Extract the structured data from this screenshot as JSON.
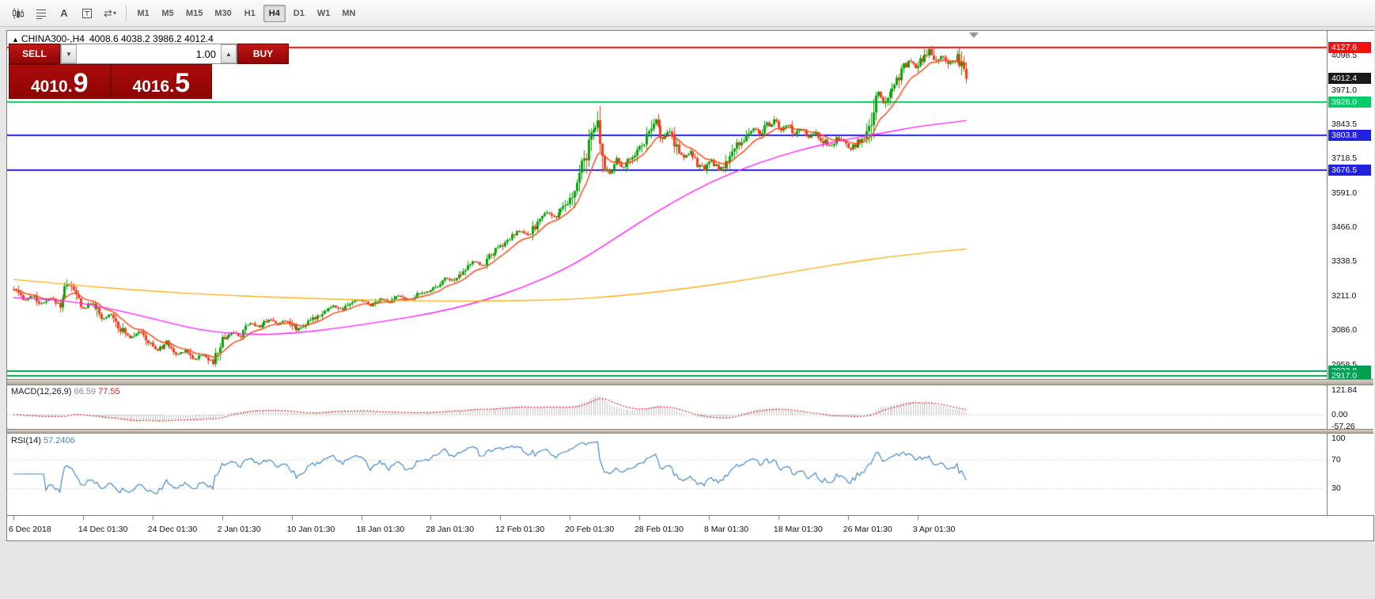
{
  "toolbar": {
    "icon_glyphs": {
      "text": "A",
      "cycle": "⇄",
      "caret": "▾"
    },
    "timeframes": [
      {
        "label": "M1",
        "active": false
      },
      {
        "label": "M5",
        "active": false
      },
      {
        "label": "M15",
        "active": false
      },
      {
        "label": "M30",
        "active": false
      },
      {
        "label": "H1",
        "active": false
      },
      {
        "label": "H4",
        "active": true
      },
      {
        "label": "D1",
        "active": false
      },
      {
        "label": "W1",
        "active": false
      },
      {
        "label": "MN",
        "active": false
      }
    ]
  },
  "chart_header": {
    "marker": "▲",
    "symbol": "CHINA300-,H4",
    "ohlc": "4008.6 4038.2 3986.2 4012.4"
  },
  "trade_panel": {
    "sell_label": "SELL",
    "buy_label": "BUY",
    "volume": "1.00",
    "vol_down_glyph": "▼",
    "vol_up_glyph": "▲",
    "sell_price": "4010.9",
    "buy_price": "4016.5"
  },
  "panels": {
    "macd": {
      "name": "MACD(12,26,9)",
      "value_main": "66.59",
      "value_signal": "77.55"
    },
    "rsi": {
      "name": "RSI(14)",
      "value": "57.2406"
    }
  },
  "price_scale": {
    "plain": [
      {
        "text": "4098.5",
        "price": 4098.5
      },
      {
        "text": "3971.0",
        "price": 3971.0
      },
      {
        "text": "3843.5",
        "price": 3843.5
      },
      {
        "text": "3718.5",
        "price": 3718.5
      },
      {
        "text": "3591.0",
        "price": 3591.0
      },
      {
        "text": "3466.0",
        "price": 3466.0
      },
      {
        "text": "3338.5",
        "price": 3338.5
      },
      {
        "text": "3211.0",
        "price": 3211.0
      },
      {
        "text": "3086.0",
        "price": 3086.0
      },
      {
        "text": "2958.5",
        "price": 2958.5
      }
    ],
    "tags": [
      {
        "text": "4127.6",
        "price": 4127.6,
        "bg": "#ee1212",
        "fg": "#ffffff"
      },
      {
        "text": "4012.4",
        "price": 4012.4,
        "bg": "#1a1a1a",
        "fg": "#ffffff"
      },
      {
        "text": "3926.0",
        "price": 3926.0,
        "bg": "#00cd66",
        "fg": "#ffffff"
      },
      {
        "text": "3803.8",
        "price": 3803.8,
        "bg": "#2222dd",
        "fg": "#ffffff"
      },
      {
        "text": "3676.5",
        "price": 3676.5,
        "bg": "#2222dd",
        "fg": "#ffffff"
      },
      {
        "text": "2933.8",
        "price": 2933.8,
        "bg": "#00a050",
        "fg": "#ffffff"
      },
      {
        "text": "2917.0",
        "price": 2917.0,
        "bg": "#00a050",
        "fg": "#ffffff"
      }
    ],
    "macd": [
      {
        "text": "121.84",
        "value": 121.84
      },
      {
        "text": "0.00",
        "value": 0.0
      },
      {
        "text": "-57.26",
        "value": -57.26
      }
    ],
    "rsi": [
      {
        "text": "100",
        "value": 100
      },
      {
        "text": "70",
        "value": 70
      },
      {
        "text": "30",
        "value": 30
      }
    ]
  },
  "time_axis": {
    "labels": [
      {
        "text": "6 Dec 2018",
        "bar": 0
      },
      {
        "text": "14 Dec 01:30",
        "bar": 30
      },
      {
        "text": "24 Dec 01:30",
        "bar": 60
      },
      {
        "text": "2 Jan 01:30",
        "bar": 90
      },
      {
        "text": "10 Jan 01:30",
        "bar": 120
      },
      {
        "text": "18 Jan 01:30",
        "bar": 150
      },
      {
        "text": "28 Jan 01:30",
        "bar": 180
      },
      {
        "text": "12 Feb 01:30",
        "bar": 210
      },
      {
        "text": "20 Feb 01:30",
        "bar": 240
      },
      {
        "text": "28 Feb 01:30",
        "bar": 270
      },
      {
        "text": "8 Mar 01:30",
        "bar": 300
      },
      {
        "text": "18 Mar 01:30",
        "bar": 330
      },
      {
        "text": "26 Mar 01:30",
        "bar": 360
      },
      {
        "text": "3 Apr 01:30",
        "bar": 390
      }
    ]
  },
  "chart_data": [
    {
      "type": "candlestick",
      "symbol": "CHINA300-",
      "timeframe": "H4",
      "ohlc_display": {
        "open": 4008.6,
        "high": 4038.2,
        "low": 3986.2,
        "close": 4012.4
      },
      "bid": 4010.9,
      "ask": 4016.5,
      "current_price": 4012.4,
      "bars": 412,
      "ylim": [
        2890,
        4170
      ],
      "up_color": "#0aa30a",
      "down_color": "#fb3a1a",
      "price_path": [
        [
          0,
          3235
        ],
        [
          4,
          3195
        ],
        [
          8,
          3212
        ],
        [
          12,
          3180
        ],
        [
          16,
          3202
        ],
        [
          20,
          3178
        ],
        [
          23,
          3262
        ],
        [
          26,
          3228
        ],
        [
          30,
          3162
        ],
        [
          34,
          3188
        ],
        [
          38,
          3120
        ],
        [
          42,
          3148
        ],
        [
          46,
          3090
        ],
        [
          50,
          3058
        ],
        [
          54,
          3082
        ],
        [
          58,
          3040
        ],
        [
          62,
          3010
        ],
        [
          66,
          3042
        ],
        [
          70,
          2992
        ],
        [
          74,
          3012
        ],
        [
          78,
          2976
        ],
        [
          82,
          2996
        ],
        [
          86,
          2966
        ],
        [
          90,
          3052
        ],
        [
          94,
          3076
        ],
        [
          98,
          3062
        ],
        [
          102,
          3112
        ],
        [
          106,
          3098
        ],
        [
          110,
          3126
        ],
        [
          114,
          3108
        ],
        [
          118,
          3122
        ],
        [
          122,
          3088
        ],
        [
          126,
          3106
        ],
        [
          130,
          3132
        ],
        [
          134,
          3156
        ],
        [
          138,
          3174
        ],
        [
          142,
          3160
        ],
        [
          146,
          3190
        ],
        [
          150,
          3196
        ],
        [
          154,
          3176
        ],
        [
          158,
          3202
        ],
        [
          162,
          3186
        ],
        [
          166,
          3212
        ],
        [
          170,
          3196
        ],
        [
          174,
          3216
        ],
        [
          178,
          3226
        ],
        [
          182,
          3246
        ],
        [
          186,
          3276
        ],
        [
          190,
          3268
        ],
        [
          194,
          3308
        ],
        [
          198,
          3338
        ],
        [
          202,
          3322
        ],
        [
          206,
          3368
        ],
        [
          210,
          3392
        ],
        [
          214,
          3422
        ],
        [
          218,
          3452
        ],
        [
          222,
          3432
        ],
        [
          226,
          3482
        ],
        [
          230,
          3520
        ],
        [
          234,
          3502
        ],
        [
          238,
          3542
        ],
        [
          241,
          3572
        ],
        [
          244,
          3650
        ],
        [
          247,
          3742
        ],
        [
          250,
          3812
        ],
        [
          252,
          3848
        ],
        [
          254,
          3712
        ],
        [
          257,
          3664
        ],
        [
          260,
          3712
        ],
        [
          263,
          3682
        ],
        [
          266,
          3722
        ],
        [
          269,
          3748
        ],
        [
          272,
          3782
        ],
        [
          275,
          3822
        ],
        [
          277,
          3856
        ],
        [
          280,
          3792
        ],
        [
          283,
          3820
        ],
        [
          286,
          3762
        ],
        [
          289,
          3722
        ],
        [
          292,
          3746
        ],
        [
          295,
          3702
        ],
        [
          298,
          3678
        ],
        [
          301,
          3716
        ],
        [
          304,
          3672
        ],
        [
          307,
          3696
        ],
        [
          310,
          3738
        ],
        [
          313,
          3776
        ],
        [
          316,
          3800
        ],
        [
          319,
          3828
        ],
        [
          322,
          3812
        ],
        [
          325,
          3840
        ],
        [
          328,
          3856
        ],
        [
          331,
          3824
        ],
        [
          334,
          3842
        ],
        [
          337,
          3802
        ],
        [
          340,
          3830
        ],
        [
          343,
          3792
        ],
        [
          346,
          3812
        ],
        [
          349,
          3782
        ],
        [
          352,
          3762
        ],
        [
          355,
          3790
        ],
        [
          358,
          3772
        ],
        [
          361,
          3752
        ],
        [
          364,
          3780
        ],
        [
          367,
          3796
        ],
        [
          369,
          3810
        ],
        [
          371,
          3905
        ],
        [
          373,
          3958
        ],
        [
          375,
          3922
        ],
        [
          377,
          3958
        ],
        [
          380,
          3998
        ],
        [
          383,
          4038
        ],
        [
          386,
          4076
        ],
        [
          389,
          4058
        ],
        [
          392,
          4088
        ],
        [
          395,
          4116
        ],
        [
          398,
          4082
        ],
        [
          401,
          4102
        ],
        [
          404,
          4068
        ],
        [
          407,
          4092
        ],
        [
          409,
          4058
        ],
        [
          411,
          4012
        ]
      ],
      "series": [
        {
          "name": "ma-fast",
          "derive": "ema",
          "period": 13,
          "color": "#f94410"
        },
        {
          "name": "ma-mid",
          "color": "#ff22ff",
          "points": [
            [
              0,
              3205
            ],
            [
              20,
              3198
            ],
            [
              40,
              3168
            ],
            [
              60,
              3128
            ],
            [
              80,
              3085
            ],
            [
              100,
              3068
            ],
            [
              120,
              3072
            ],
            [
              140,
              3092
            ],
            [
              160,
              3118
            ],
            [
              180,
              3146
            ],
            [
              200,
              3186
            ],
            [
              220,
              3242
            ],
            [
              240,
              3318
            ],
            [
              255,
              3398
            ],
            [
              270,
              3482
            ],
            [
              285,
              3560
            ],
            [
              300,
              3628
            ],
            [
              315,
              3682
            ],
            [
              330,
              3726
            ],
            [
              345,
              3762
            ],
            [
              360,
              3790
            ],
            [
              375,
              3812
            ],
            [
              390,
              3836
            ],
            [
              411,
              3858
            ]
          ]
        },
        {
          "name": "ma-slow",
          "color": "#f9b218",
          "points": [
            [
              0,
              3272
            ],
            [
              30,
              3248
            ],
            [
              60,
              3228
            ],
            [
              90,
              3214
            ],
            [
              120,
              3204
            ],
            [
              150,
              3196
            ],
            [
              180,
              3192
            ],
            [
              210,
              3192
            ],
            [
              240,
              3198
            ],
            [
              260,
              3210
            ],
            [
              280,
              3228
            ],
            [
              300,
              3250
            ],
            [
              320,
              3276
            ],
            [
              340,
              3306
            ],
            [
              360,
              3334
            ],
            [
              380,
              3358
            ],
            [
              400,
              3376
            ],
            [
              411,
              3384
            ]
          ]
        }
      ],
      "hlines": [
        {
          "price": 4127.6,
          "color": "#f01010",
          "width": 2
        },
        {
          "price": 3926.0,
          "color": "#00cd66",
          "width": 2
        },
        {
          "price": 3803.8,
          "color": "#2222dd",
          "width": 2
        },
        {
          "price": 3676.5,
          "color": "#2222dd",
          "width": 2
        },
        {
          "price": 2933.8,
          "color": "#00a050",
          "width": 2
        },
        {
          "price": 2917.0,
          "color": "#00a050",
          "width": 2
        }
      ]
    },
    {
      "type": "macd",
      "label": "MACD(12,26,9)",
      "params": [
        12,
        26,
        9
      ],
      "current_main": 66.59,
      "current_signal": 77.55,
      "scale_max": 121.84,
      "scale_min": -57.26,
      "hist_color": "#c4c4c4",
      "signal_color": "#e02020"
    },
    {
      "type": "rsi",
      "label": "RSI(14)",
      "period": 14,
      "current": 57.2406,
      "levels": [
        100,
        70,
        30
      ],
      "color": "#4788c7"
    }
  ]
}
